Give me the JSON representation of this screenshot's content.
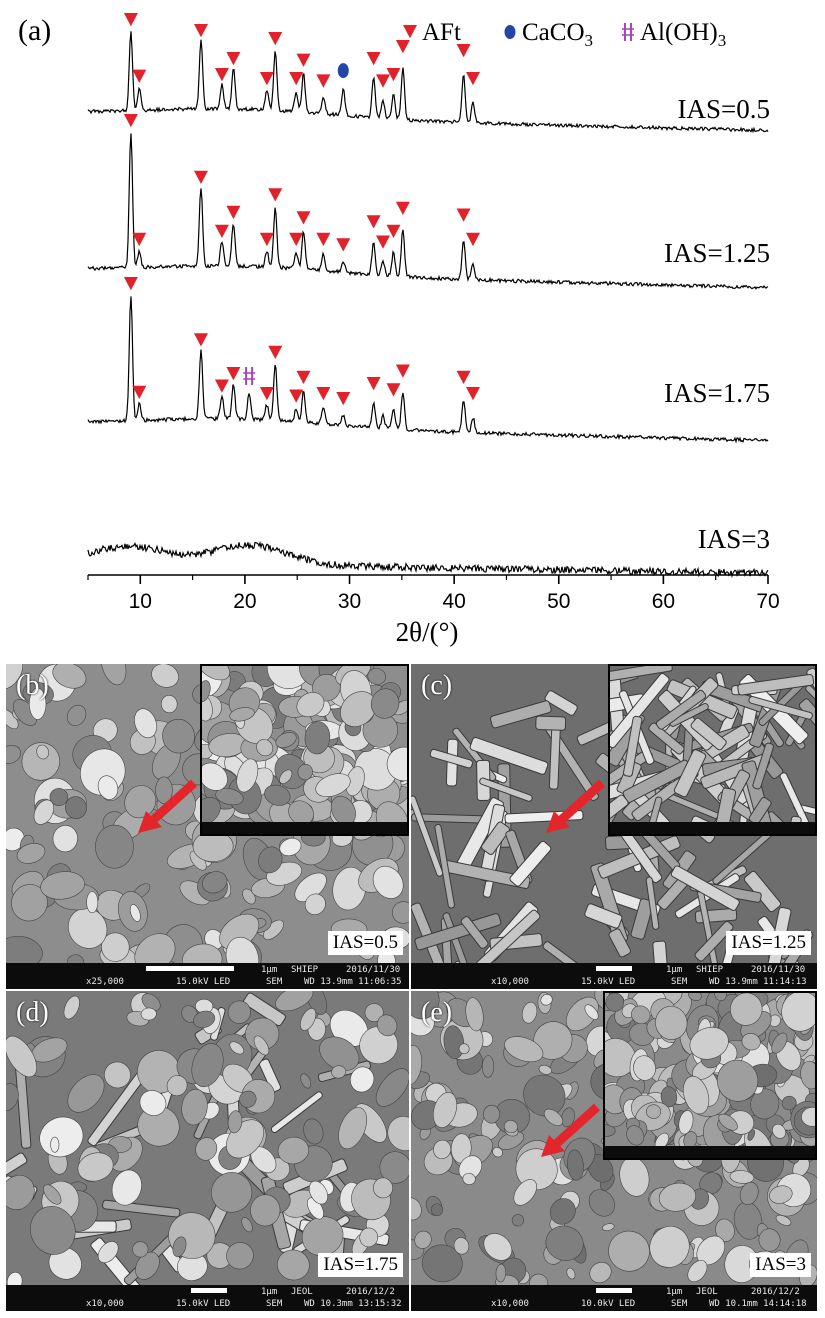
{
  "chart_data": {
    "type": "line",
    "panel_label": "(a)",
    "xlabel": "2θ/(°)",
    "xlim": [
      5,
      70
    ],
    "x_ticks": [
      10,
      20,
      30,
      40,
      50,
      60,
      70
    ],
    "legend": [
      {
        "marker": "triangle-down",
        "color": "#e0222a",
        "label": "AFt"
      },
      {
        "marker": "ellipse",
        "color": "#2446a8",
        "label": "CaCO3"
      },
      {
        "marker": "double-bar",
        "color": "#a447b5",
        "label": "Al(OH)3"
      }
    ],
    "series": [
      {
        "name": "IAS=0.5",
        "peaks": [
          [
            9.1,
            1.0
          ],
          [
            9.9,
            0.28
          ],
          [
            15.8,
            0.85
          ],
          [
            17.8,
            0.3
          ],
          [
            18.9,
            0.5
          ],
          [
            22.1,
            0.25
          ],
          [
            22.9,
            0.75
          ],
          [
            24.9,
            0.25
          ],
          [
            25.6,
            0.48
          ],
          [
            27.5,
            0.22
          ],
          [
            29.4,
            0.33
          ],
          [
            32.3,
            0.5
          ],
          [
            33.2,
            0.22
          ],
          [
            34.2,
            0.3
          ],
          [
            35.1,
            0.65
          ],
          [
            40.9,
            0.6
          ],
          [
            41.8,
            0.25
          ]
        ],
        "afT_markers": [
          9.1,
          9.9,
          15.8,
          17.8,
          18.9,
          22.1,
          22.9,
          24.9,
          25.6,
          27.5,
          32.3,
          33.2,
          34.2,
          35.1,
          40.9,
          41.8
        ],
        "caco3_markers": [
          29.4
        ],
        "aloh3_markers": []
      },
      {
        "name": "IAS=1.25",
        "peaks": [
          [
            9.1,
            1.0
          ],
          [
            9.9,
            0.12
          ],
          [
            15.8,
            0.58
          ],
          [
            17.8,
            0.18
          ],
          [
            18.9,
            0.32
          ],
          [
            22.1,
            0.12
          ],
          [
            22.9,
            0.45
          ],
          [
            24.9,
            0.12
          ],
          [
            25.6,
            0.28
          ],
          [
            27.5,
            0.12
          ],
          [
            29.4,
            0.08
          ],
          [
            32.3,
            0.25
          ],
          [
            33.2,
            0.1
          ],
          [
            34.2,
            0.18
          ],
          [
            35.1,
            0.35
          ],
          [
            40.9,
            0.3
          ],
          [
            41.8,
            0.12
          ]
        ],
        "afT_markers": [
          9.1,
          9.9,
          15.8,
          17.8,
          18.9,
          22.1,
          22.9,
          24.9,
          25.6,
          27.5,
          29.4,
          32.3,
          33.2,
          34.2,
          35.1,
          40.9,
          41.8
        ],
        "caco3_markers": [],
        "aloh3_markers": []
      },
      {
        "name": "IAS=1.75",
        "peaks": [
          [
            9.1,
            1.0
          ],
          [
            9.9,
            0.13
          ],
          [
            15.8,
            0.55
          ],
          [
            17.8,
            0.18
          ],
          [
            18.9,
            0.28
          ],
          [
            20.4,
            0.2
          ],
          [
            22.1,
            0.12
          ],
          [
            22.9,
            0.45
          ],
          [
            24.9,
            0.1
          ],
          [
            25.6,
            0.25
          ],
          [
            27.5,
            0.12
          ],
          [
            29.4,
            0.08
          ],
          [
            32.3,
            0.2
          ],
          [
            33.2,
            0.1
          ],
          [
            34.2,
            0.15
          ],
          [
            35.1,
            0.3
          ],
          [
            40.9,
            0.25
          ],
          [
            41.8,
            0.12
          ]
        ],
        "afT_markers": [
          9.1,
          9.9,
          15.8,
          17.8,
          18.9,
          22.1,
          22.9,
          24.9,
          25.6,
          27.5,
          29.4,
          32.3,
          34.2,
          35.1,
          40.9,
          41.8
        ],
        "caco3_markers": [],
        "aloh3_markers": [
          20.4
        ]
      },
      {
        "name": "IAS=3",
        "peaks": [],
        "amorphous_humps": [
          [
            9,
            0.3
          ],
          [
            20.5,
            0.35
          ]
        ],
        "afT_markers": [],
        "caco3_markers": [],
        "aloh3_markers": []
      }
    ]
  },
  "sem_panels": [
    {
      "label": "(b)",
      "ias": "IAS=0.5",
      "has_inset": true,
      "style": "plates",
      "tone": "#8d8d8d",
      "bar": {
        "mag": "x25,000",
        "kv": "15.0kV LED",
        "mode": "SEM",
        "wd": "WD 13.9mm 11:06:35",
        "scale": "1μm",
        "lab": "SHIEP",
        "date": "2016/11/30"
      }
    },
    {
      "label": "(c)",
      "ias": "IAS=1.25",
      "has_inset": true,
      "style": "rods",
      "tone": "#6e6e6e",
      "bar": {
        "mag": "x10,000",
        "kv": "15.0kV LED",
        "mode": "SEM",
        "wd": "WD 13.9mm 11:14:13",
        "scale": "1μm",
        "lab": "SHIEP",
        "date": "2016/11/30"
      }
    },
    {
      "label": "(d)",
      "ias": "IAS=1.75",
      "has_inset": false,
      "style": "mixed",
      "tone": "#7a7a7a",
      "bar": {
        "mag": "x10,000",
        "kv": "15.0kV LED",
        "mode": "SEM",
        "wd": "WD 10.3mm 13:15:32",
        "scale": "1μm",
        "lab": "JEOL",
        "date": "2016/12/2"
      }
    },
    {
      "label": "(e)",
      "ias": "IAS=3",
      "has_inset": true,
      "style": "gel",
      "tone": "#8a8a8a",
      "bar": {
        "mag": "x10,000",
        "kv": "10.0kV LED",
        "mode": "SEM",
        "wd": "WD 10.1mm 14:14:18",
        "scale": "1μm",
        "lab": "JEOL",
        "date": "2016/12/2"
      }
    }
  ],
  "colors": {
    "aft": "#e0222a",
    "caco3": "#2446a8",
    "aloh3": "#a447b5",
    "arrow": "#e3262b"
  }
}
